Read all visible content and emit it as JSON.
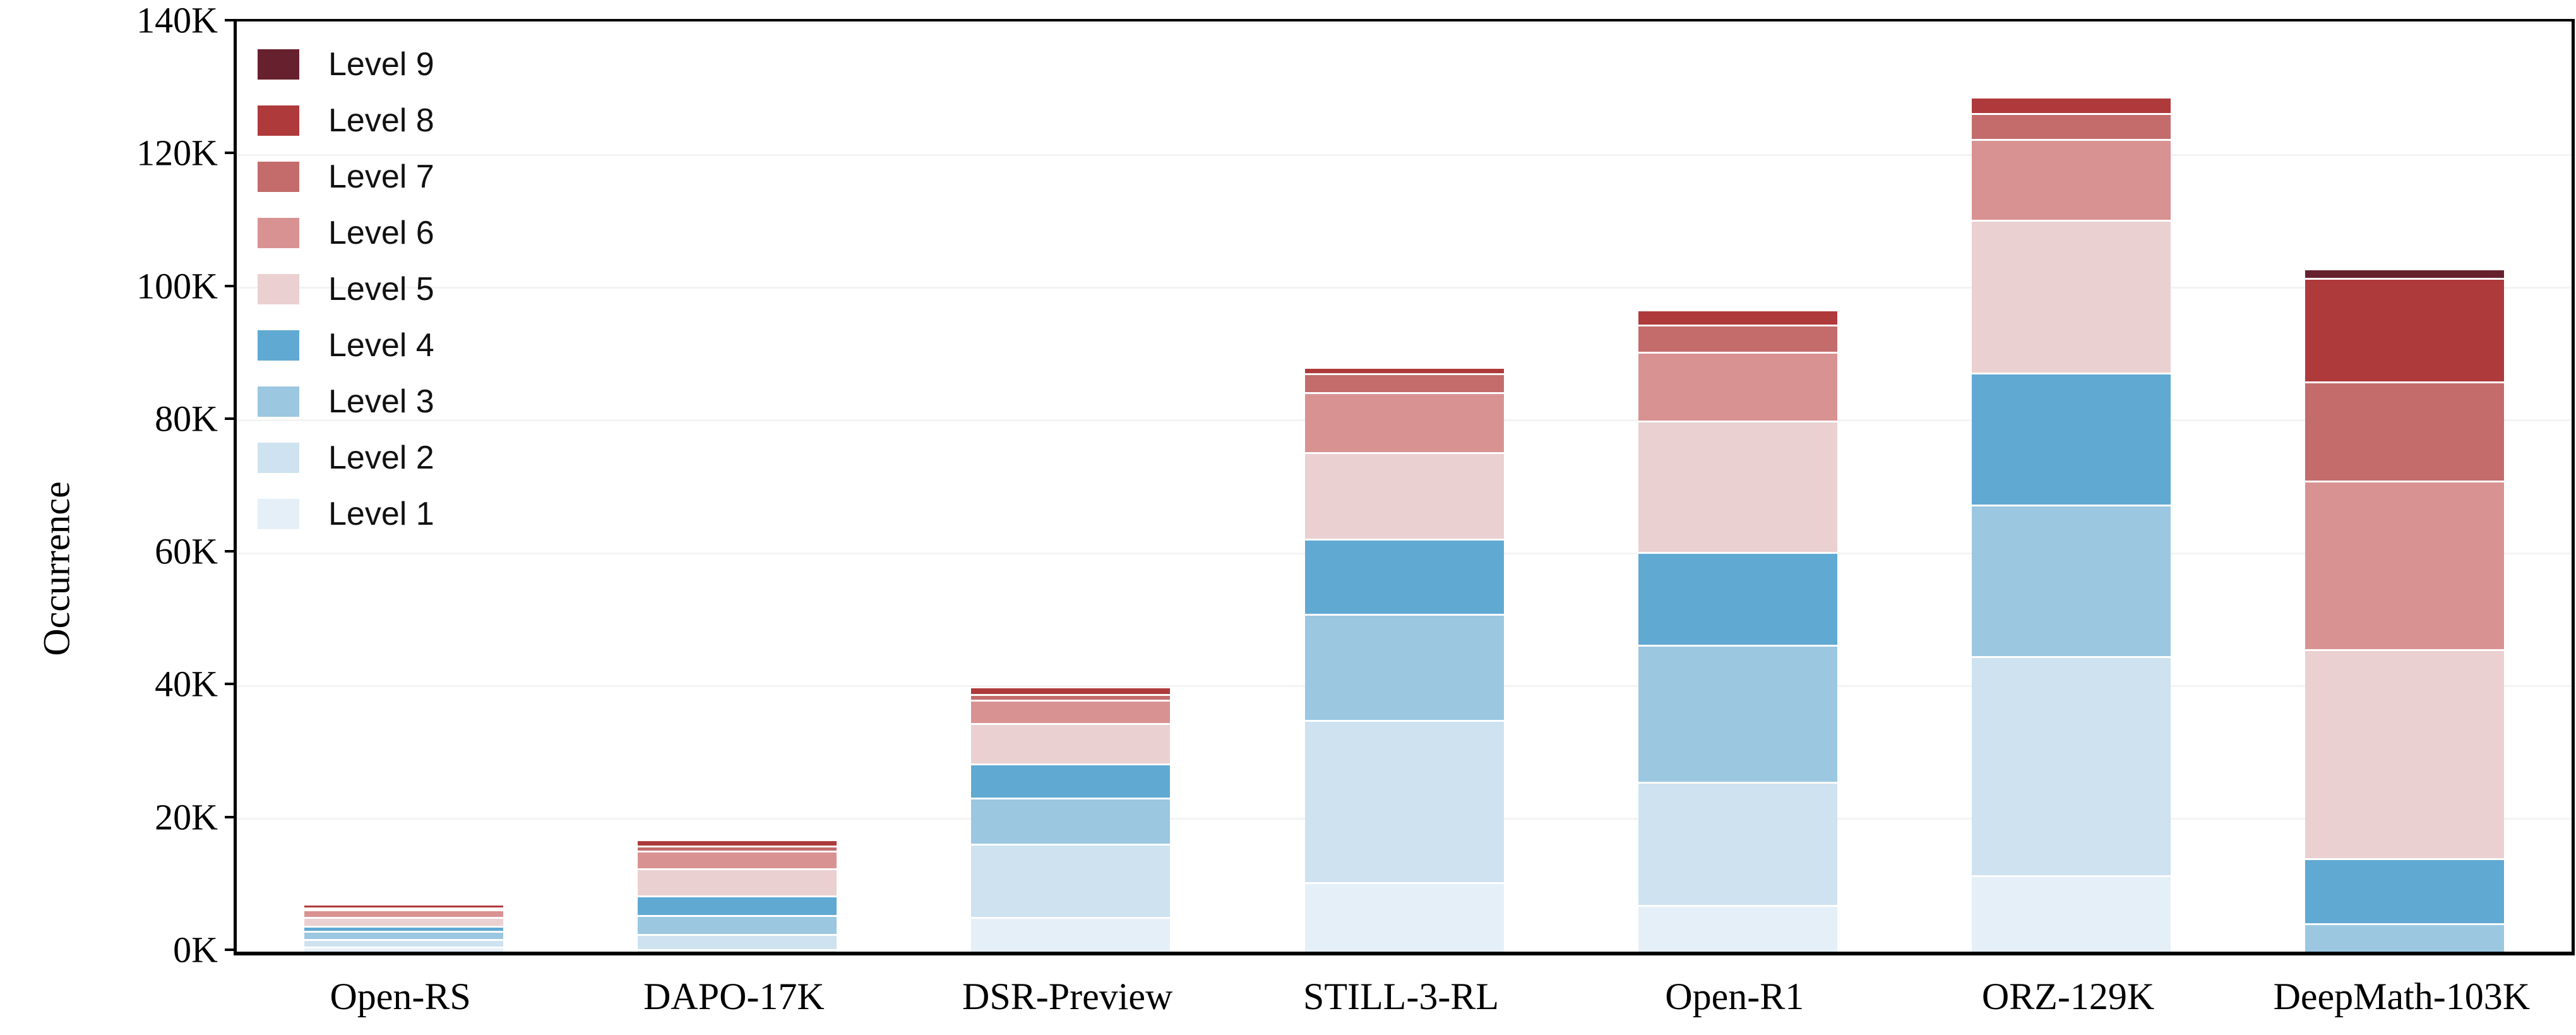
{
  "figure": {
    "ylabel": "Occurrence",
    "background": "#ffffff",
    "axis_color": "#000000",
    "gridline_color": "#f3f3f3"
  },
  "chart_data": {
    "type": "bar",
    "stacked": true,
    "title": "",
    "xlabel": "",
    "ylabel": "Occurrence",
    "units": "values in thousands (K) of occurrences",
    "ylim": [
      0,
      140
    ],
    "y_tick_step": 20,
    "y_tick_labels": [
      "0K",
      "20K",
      "40K",
      "60K",
      "80K",
      "100K",
      "120K",
      "140K"
    ],
    "grid": "horizontal gridlines every 20K",
    "legend_position": "upper-left, ordered Level 9 at top to Level 1 at bottom",
    "categories": [
      "Open-RS",
      "DAPO-17K",
      "DSR-Preview",
      "STILL-3-RL",
      "Open-R1",
      "ORZ-129K",
      "DeepMath-103K"
    ],
    "totals_K": [
      6.9,
      16.7,
      39.7,
      87.8,
      96.4,
      128.5,
      102.6
    ],
    "series": [
      {
        "name": "Level 1",
        "color": "#e5eff7",
        "values": [
          0.6,
          0.2,
          5.1,
          10.3,
          6.9,
          11.4,
          0
        ]
      },
      {
        "name": "Level 2",
        "color": "#cee2f0",
        "values": [
          1.2,
          2.3,
          11.0,
          24.5,
          18.5,
          33.0,
          0
        ]
      },
      {
        "name": "Level 3",
        "color": "#9bc7e1",
        "values": [
          1.2,
          2.85,
          7.0,
          15.9,
          20.7,
          22.8,
          4.1
        ]
      },
      {
        "name": "Level 4",
        "color": "#60a9d3",
        "values": [
          0.75,
          3.0,
          5.1,
          11.4,
          14.0,
          19.9,
          9.8
        ]
      },
      {
        "name": "Level 5",
        "color": "#ead0d1",
        "values": [
          1.3,
          4.1,
          6.1,
          13.0,
          19.7,
          23.0,
          31.5
        ]
      },
      {
        "name": "Level 6",
        "color": "#d99292",
        "values": [
          1.15,
          2.6,
          3.5,
          9.0,
          10.4,
          12.2,
          25.4
        ]
      },
      {
        "name": "Level 7",
        "color": "#c36c6b",
        "values": [
          0.3,
          0.8,
          0.9,
          2.9,
          4.1,
          3.9,
          14.9
        ]
      },
      {
        "name": "Level 8",
        "color": "#af3a3b",
        "values": [
          0.4,
          0.8,
          1.0,
          0.8,
          2.1,
          2.3,
          15.6
        ]
      },
      {
        "name": "Level 9",
        "color": "#67212e",
        "values": [
          0,
          0,
          0,
          0,
          0,
          0,
          1.3
        ]
      }
    ]
  }
}
